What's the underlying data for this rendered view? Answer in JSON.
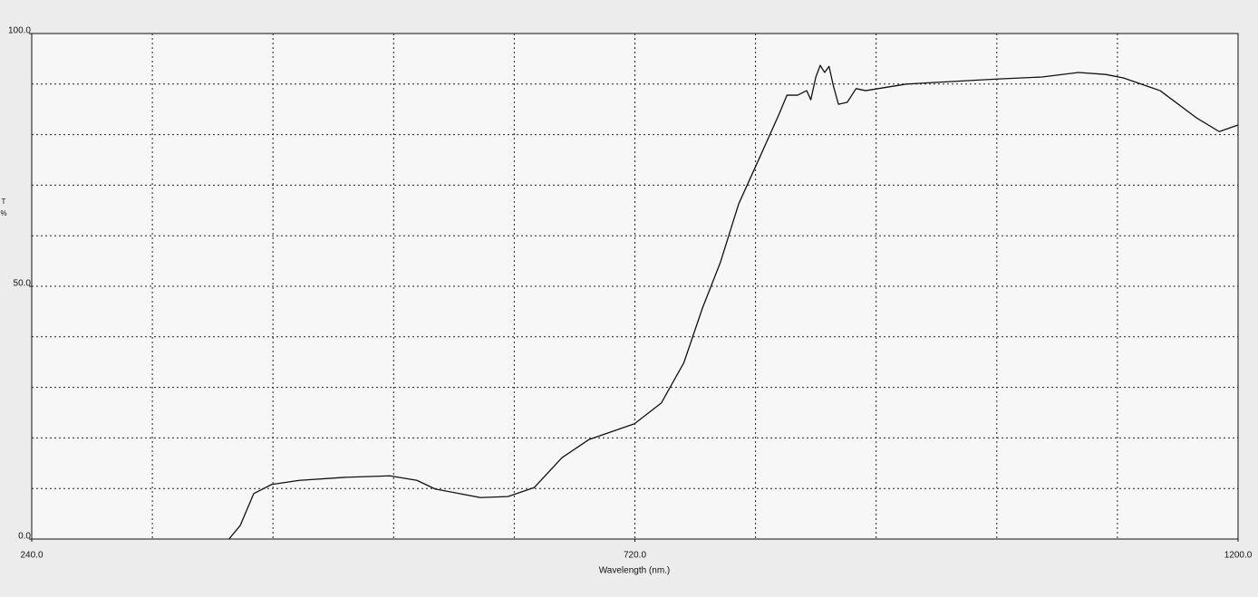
{
  "chart_data": {
    "type": "line",
    "x_label": "Wavelength (nm.)",
    "y_label": [
      "T",
      "%"
    ],
    "xlim": [
      240,
      1200
    ],
    "ylim": [
      0,
      100
    ],
    "xticks": [
      {
        "value": 240,
        "label": "240.0"
      },
      {
        "value": 720,
        "label": "720.0"
      },
      {
        "value": 1200,
        "label": "1200.0"
      }
    ],
    "yticks": [
      {
        "value": 0,
        "label": "0.0"
      },
      {
        "value": 50,
        "label": "50.0"
      },
      {
        "value": 100,
        "label": "100.0"
      }
    ],
    "xgrid": [
      336,
      432,
      528,
      624,
      720,
      816,
      912,
      1008,
      1104
    ],
    "ygrid": [
      10,
      20,
      30,
      40,
      50,
      60,
      70,
      80,
      90
    ],
    "grid": true,
    "series": [
      {
        "color": "#111111",
        "x": [
          397,
          406,
          416.7,
          431,
          453,
          489,
          525,
          546.6,
          561,
          597,
          619,
          640,
          662,
          683.6,
          719.7,
          741,
          759,
          773.8,
          788,
          802.6,
          820.6,
          835,
          841,
          849.5,
          856.7,
          860,
          864,
          867.5,
          871,
          874.5,
          878,
          882,
          889,
          896,
          903.6,
          936,
          972,
          1008,
          1044,
          1073,
          1094.7,
          1109,
          1138,
          1167,
          1185,
          1200
        ],
        "values": [
          0,
          2.7,
          9.0,
          10.8,
          11.6,
          12.2,
          12.5,
          11.6,
          9.9,
          8.2,
          8.4,
          10.2,
          16.1,
          19.7,
          22.8,
          26.9,
          34.9,
          45.7,
          54.7,
          66.3,
          76.2,
          84.2,
          87.8,
          87.8,
          88.7,
          86.9,
          91.4,
          93.7,
          92.3,
          93.5,
          89.6,
          86.0,
          86.4,
          89.1,
          88.7,
          90.0,
          90.5,
          91.0,
          91.4,
          92.3,
          91.9,
          91.2,
          88.7,
          83.3,
          80.6,
          81.9
        ]
      }
    ]
  }
}
